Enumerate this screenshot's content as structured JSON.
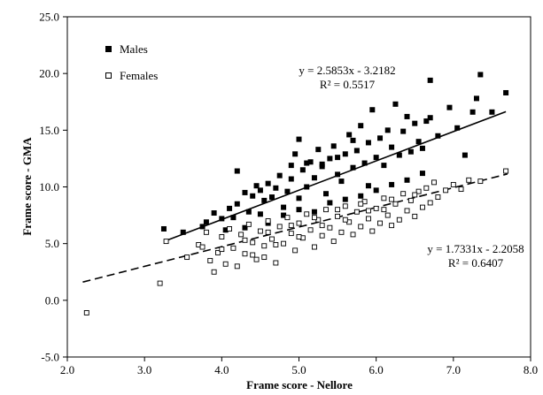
{
  "chart_data": {
    "type": "scatter",
    "xlabel": "Frame score - Nellore",
    "ylabel": "Frame score - GMA",
    "xlim": [
      2.0,
      8.0
    ],
    "ylim": [
      -5.0,
      25.0
    ],
    "x_ticks": [
      "2.0",
      "3.0",
      "4.0",
      "5.0",
      "6.0",
      "7.0",
      "8.0"
    ],
    "y_ticks": [
      "-5.0",
      "0.0",
      "5.0",
      "10.0",
      "15.0",
      "20.0",
      "25.0"
    ],
    "grid": false,
    "legend_position": "top-left",
    "series": [
      {
        "name": "Males",
        "marker": "filled-square",
        "color": "#000000",
        "trendline": {
          "slope": 2.5853,
          "intercept": -3.2182,
          "x_range": [
            3.25,
            7.68
          ],
          "style": "solid"
        },
        "equation": "y = 2.5853x - 3.2182",
        "r_squared": "R² = 0.5517",
        "points": [
          [
            3.25,
            6.3
          ],
          [
            3.5,
            6.0
          ],
          [
            3.75,
            6.5
          ],
          [
            3.8,
            6.9
          ],
          [
            3.9,
            7.7
          ],
          [
            4.0,
            7.2
          ],
          [
            4.05,
            6.2
          ],
          [
            4.1,
            8.1
          ],
          [
            4.15,
            7.3
          ],
          [
            4.2,
            11.4
          ],
          [
            4.2,
            8.5
          ],
          [
            4.3,
            9.5
          ],
          [
            4.35,
            7.8
          ],
          [
            4.4,
            9.2
          ],
          [
            4.45,
            10.1
          ],
          [
            4.5,
            7.6
          ],
          [
            4.55,
            8.8
          ],
          [
            4.6,
            10.3
          ],
          [
            4.65,
            9.1
          ],
          [
            4.7,
            9.9
          ],
          [
            4.75,
            11.0
          ],
          [
            4.8,
            8.2
          ],
          [
            4.85,
            9.6
          ],
          [
            4.9,
            10.7
          ],
          [
            4.95,
            12.9
          ],
          [
            5.0,
            14.2
          ],
          [
            5.0,
            9.0
          ],
          [
            5.05,
            11.5
          ],
          [
            5.1,
            10.0
          ],
          [
            5.15,
            12.2
          ],
          [
            5.2,
            10.8
          ],
          [
            5.25,
            13.3
          ],
          [
            5.3,
            11.8
          ],
          [
            5.35,
            9.4
          ],
          [
            5.4,
            12.5
          ],
          [
            5.45,
            13.6
          ],
          [
            5.5,
            11.1
          ],
          [
            5.55,
            10.5
          ],
          [
            5.6,
            12.9
          ],
          [
            5.65,
            14.6
          ],
          [
            5.7,
            11.7
          ],
          [
            5.75,
            13.2
          ],
          [
            5.8,
            15.4
          ],
          [
            5.85,
            12.1
          ],
          [
            5.9,
            13.9
          ],
          [
            5.95,
            16.8
          ],
          [
            6.0,
            12.6
          ],
          [
            6.05,
            14.3
          ],
          [
            6.1,
            11.9
          ],
          [
            6.15,
            15.0
          ],
          [
            6.2,
            13.5
          ],
          [
            6.25,
            17.3
          ],
          [
            6.3,
            12.8
          ],
          [
            6.35,
            14.9
          ],
          [
            6.4,
            16.2
          ],
          [
            6.45,
            13.1
          ],
          [
            6.5,
            15.6
          ],
          [
            6.55,
            14.0
          ],
          [
            6.6,
            13.4
          ],
          [
            6.65,
            15.8
          ],
          [
            6.7,
            19.4
          ],
          [
            6.7,
            16.1
          ],
          [
            6.8,
            14.5
          ],
          [
            6.95,
            17.0
          ],
          [
            7.05,
            15.2
          ],
          [
            7.15,
            12.8
          ],
          [
            7.25,
            16.6
          ],
          [
            7.3,
            17.8
          ],
          [
            7.35,
            19.9
          ],
          [
            7.5,
            16.6
          ],
          [
            7.68,
            18.3
          ],
          [
            4.6,
            6.8
          ],
          [
            4.8,
            7.5
          ],
          [
            5.0,
            8.0
          ],
          [
            5.2,
            7.8
          ],
          [
            5.4,
            8.6
          ],
          [
            5.6,
            8.9
          ],
          [
            5.8,
            9.2
          ],
          [
            6.0,
            9.7
          ],
          [
            6.2,
            10.2
          ],
          [
            6.4,
            10.6
          ],
          [
            6.6,
            11.2
          ],
          [
            4.3,
            6.4
          ],
          [
            4.5,
            9.7
          ],
          [
            4.9,
            11.9
          ],
          [
            5.1,
            12.1
          ],
          [
            5.3,
            12.0
          ],
          [
            5.5,
            12.6
          ],
          [
            5.7,
            14.1
          ],
          [
            5.9,
            10.1
          ]
        ]
      },
      {
        "name": "Females",
        "marker": "open-square",
        "color": "#000000",
        "trendline": {
          "slope": 1.7331,
          "intercept": -2.2058,
          "x_range": [
            2.2,
            7.7
          ],
          "style": "dashed"
        },
        "equation": "y = 1.7331x - 2.2058",
        "r_squared": "R² = 0.6407",
        "points": [
          [
            2.25,
            -1.1
          ],
          [
            3.2,
            1.5
          ],
          [
            3.28,
            5.2
          ],
          [
            3.55,
            3.8
          ],
          [
            3.7,
            4.9
          ],
          [
            3.8,
            6.0
          ],
          [
            3.85,
            3.5
          ],
          [
            3.9,
            2.5
          ],
          [
            3.95,
            4.2
          ],
          [
            4.0,
            5.6
          ],
          [
            4.05,
            3.2
          ],
          [
            4.1,
            6.3
          ],
          [
            4.15,
            4.6
          ],
          [
            4.2,
            3.0
          ],
          [
            4.25,
            5.8
          ],
          [
            4.3,
            4.1
          ],
          [
            4.35,
            6.7
          ],
          [
            4.4,
            5.1
          ],
          [
            4.45,
            3.6
          ],
          [
            4.5,
            6.1
          ],
          [
            4.55,
            4.8
          ],
          [
            4.6,
            7.0
          ],
          [
            4.65,
            5.4
          ],
          [
            4.7,
            3.3
          ],
          [
            4.75,
            6.5
          ],
          [
            4.8,
            5.0
          ],
          [
            4.85,
            7.3
          ],
          [
            4.9,
            5.9
          ],
          [
            4.95,
            4.4
          ],
          [
            5.0,
            6.8
          ],
          [
            5.05,
            5.5
          ],
          [
            5.1,
            7.6
          ],
          [
            5.15,
            6.2
          ],
          [
            5.2,
            4.7
          ],
          [
            5.25,
            7.1
          ],
          [
            5.3,
            5.7
          ],
          [
            5.35,
            8.0
          ],
          [
            5.4,
            6.4
          ],
          [
            5.45,
            5.2
          ],
          [
            5.5,
            7.4
          ],
          [
            5.55,
            6.0
          ],
          [
            5.6,
            8.3
          ],
          [
            5.65,
            6.9
          ],
          [
            5.7,
            5.8
          ],
          [
            5.75,
            7.8
          ],
          [
            5.8,
            6.5
          ],
          [
            5.85,
            8.7
          ],
          [
            5.9,
            7.2
          ],
          [
            5.95,
            6.1
          ],
          [
            6.0,
            8.1
          ],
          [
            6.05,
            6.8
          ],
          [
            6.1,
            9.0
          ],
          [
            6.15,
            7.5
          ],
          [
            6.2,
            6.6
          ],
          [
            6.25,
            8.5
          ],
          [
            6.3,
            7.1
          ],
          [
            6.35,
            9.4
          ],
          [
            6.4,
            7.9
          ],
          [
            6.45,
            8.8
          ],
          [
            6.5,
            7.4
          ],
          [
            6.55,
            9.6
          ],
          [
            6.6,
            8.2
          ],
          [
            6.65,
            9.9
          ],
          [
            6.7,
            8.6
          ],
          [
            6.75,
            10.4
          ],
          [
            6.8,
            9.1
          ],
          [
            6.9,
            9.7
          ],
          [
            7.0,
            10.2
          ],
          [
            7.1,
            9.8
          ],
          [
            7.2,
            10.6
          ],
          [
            7.35,
            10.5
          ],
          [
            7.68,
            11.4
          ],
          [
            4.0,
            4.5
          ],
          [
            4.3,
            5.3
          ],
          [
            4.6,
            6.0
          ],
          [
            4.9,
            6.6
          ],
          [
            5.2,
            7.3
          ],
          [
            5.5,
            8.0
          ],
          [
            5.8,
            8.5
          ],
          [
            6.1,
            8.0
          ],
          [
            4.4,
            4.0
          ],
          [
            4.7,
            4.9
          ],
          [
            5.0,
            5.6
          ],
          [
            5.3,
            6.6
          ],
          [
            5.6,
            7.1
          ],
          [
            5.9,
            7.9
          ],
          [
            6.2,
            8.9
          ],
          [
            6.5,
            9.3
          ],
          [
            3.75,
            4.7
          ],
          [
            4.55,
            3.8
          ]
        ]
      }
    ]
  }
}
